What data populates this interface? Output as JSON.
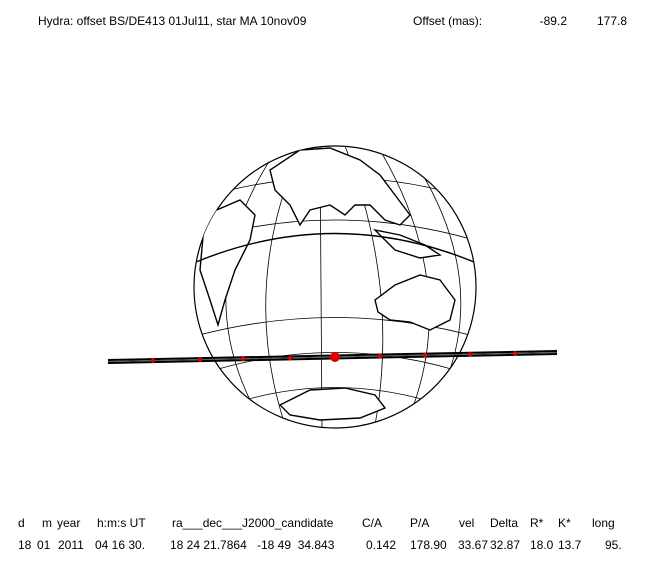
{
  "title": {
    "text": "Hydra: offset BS/DE413 01Jul11, star MA 10nov09",
    "offset_label": "Offset (mas):",
    "offset_values": [
      "-89.2",
      "177.8"
    ]
  },
  "table": {
    "header": [
      "d",
      "m",
      "year",
      "h:m:s UT",
      "ra___dec___J2000_candidate",
      "C/A",
      "P/A",
      "vel",
      "Delta",
      "R*",
      "K*",
      "long"
    ],
    "row": [
      "18",
      "01",
      "2011",
      "04 16 30.",
      "18 24 21.7864",
      "-18 49  34.843",
      "0.142",
      "178.90",
      "33.67",
      "32.87",
      "18.0",
      "13.7",
      "95."
    ]
  }
}
